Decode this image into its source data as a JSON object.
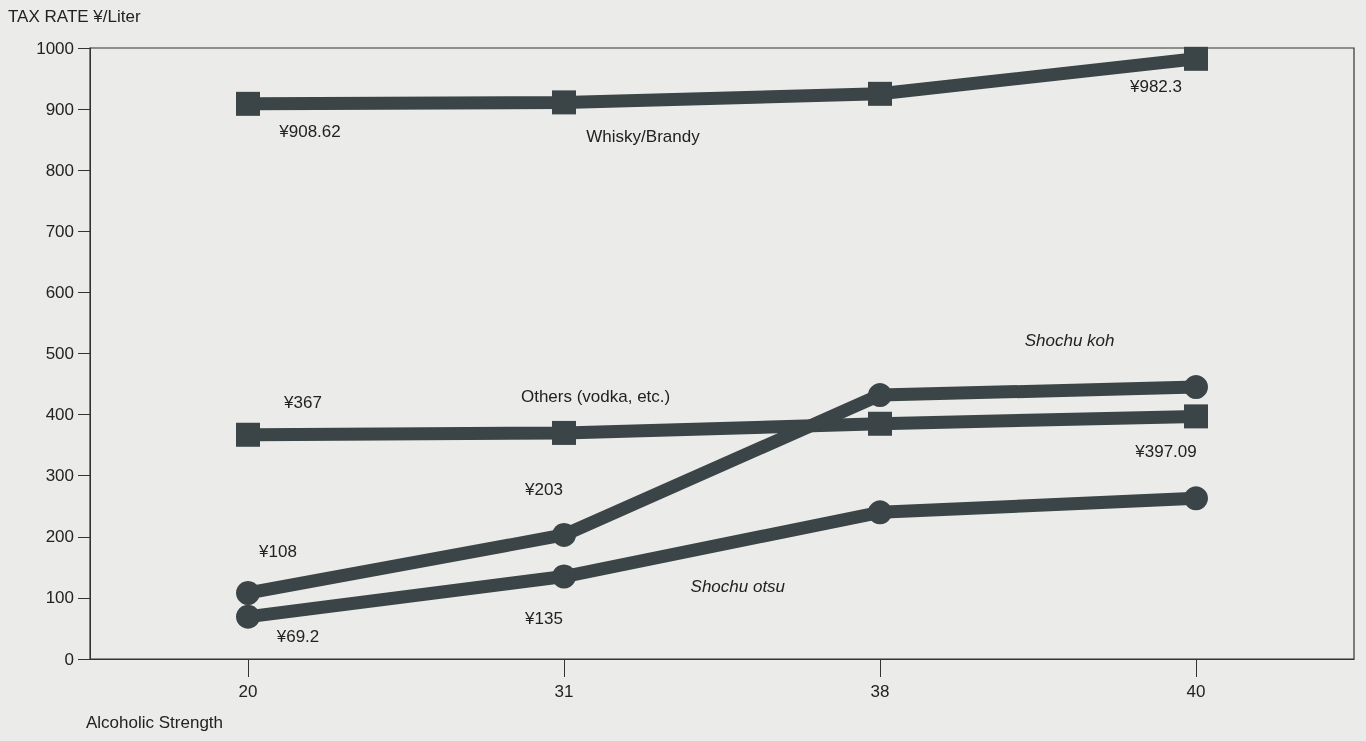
{
  "chart_data": {
    "type": "line",
    "ylabel": "TAX RATE ¥/Liter",
    "xlabel": "Alcoholic Strength",
    "categories": [
      "20",
      "31",
      "38",
      "40"
    ],
    "ylim": [
      0,
      1000
    ],
    "yticks": [
      0,
      100,
      200,
      300,
      400,
      500,
      600,
      700,
      800,
      900,
      1000
    ],
    "grid": false,
    "legend": false,
    "series": [
      {
        "name": "Whisky/Brandy",
        "color": "#3b4446",
        "marker": "square",
        "values": [
          908.62,
          911,
          925,
          982.3
        ],
        "value_labels": [
          "¥908.62",
          null,
          null,
          "¥982.3"
        ]
      },
      {
        "name": "Others (vodka, etc.)",
        "color": "#3b4446",
        "marker": "square",
        "values": [
          367,
          370,
          385,
          397.09
        ],
        "value_labels": [
          "¥367",
          null,
          null,
          "¥397.09"
        ]
      },
      {
        "name": "Shochu koh",
        "color": "#3b4446",
        "marker": "circle",
        "values": [
          108,
          203,
          432,
          445
        ],
        "value_labels": [
          "¥108",
          "¥203",
          null,
          null
        ]
      },
      {
        "name": "Shochu otsu",
        "color": "#3b4446",
        "marker": "circle",
        "values": [
          69.2,
          135,
          240,
          263
        ],
        "value_labels": [
          "¥69.2",
          "¥135",
          null,
          null
        ]
      }
    ]
  }
}
